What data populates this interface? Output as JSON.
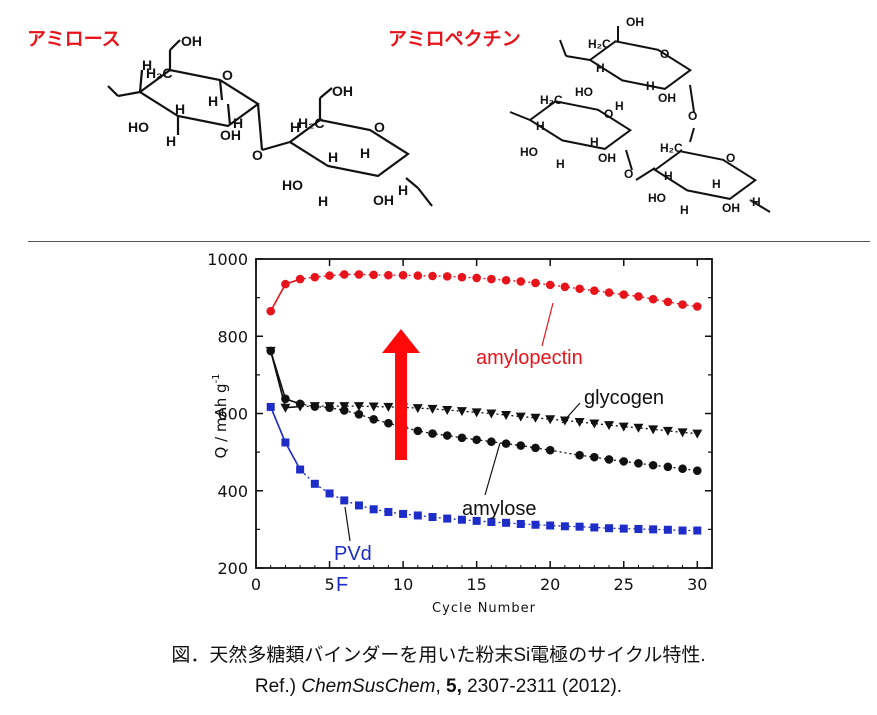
{
  "labels": {
    "amylose_jp": "アミロース",
    "amylopectin_jp": "アミロペクチン"
  },
  "molecules": {
    "atoms": [
      "OH",
      "H",
      "H₂C",
      "HO",
      "O"
    ]
  },
  "caption": {
    "line1": "図．天然多糖類バインダーを用いた粉末Si電極のサイクル特性.",
    "ref_prefix": "Ref.) ",
    "journal": "ChemSusChem",
    "sep1": ", ",
    "volume": "5,",
    "pages": " 2307-2311 (2012)."
  },
  "chart_data": {
    "type": "scatter",
    "xlabel": "Cycle Number",
    "ylabel": "Q / mAh g",
    "ylabel_sup": "-1",
    "xlim": [
      0,
      31
    ],
    "ylim": [
      200,
      1000
    ],
    "xticks": [
      0,
      5,
      10,
      15,
      20,
      25,
      30
    ],
    "yticks": [
      200,
      400,
      600,
      800,
      1000
    ],
    "grid": false,
    "series": [
      {
        "name": "amylopectin",
        "color": "#e8141c",
        "marker": "circle",
        "x": [
          1,
          2,
          3,
          4,
          5,
          6,
          7,
          8,
          9,
          10,
          11,
          12,
          13,
          14,
          15,
          16,
          17,
          18,
          19,
          20,
          21,
          22,
          23,
          24,
          25,
          26,
          27,
          28,
          29,
          30
        ],
        "y": [
          865,
          935,
          948,
          953,
          957,
          960,
          960,
          959,
          958,
          958,
          957,
          956,
          955,
          953,
          951,
          948,
          945,
          942,
          938,
          933,
          928,
          923,
          918,
          913,
          908,
          903,
          896,
          889,
          882,
          877
        ]
      },
      {
        "name": "glycogen",
        "color": "#111111",
        "marker": "triangle-down",
        "x": [
          1,
          2,
          3,
          4,
          5,
          6,
          7,
          8,
          9,
          10,
          11,
          12,
          13,
          14,
          15,
          16,
          17,
          18,
          19,
          20,
          21,
          22,
          23,
          24,
          25,
          26,
          27,
          28,
          29,
          30
        ],
        "y": [
          762,
          615,
          618,
          619,
          619,
          619,
          619,
          618,
          617,
          616,
          614,
          612,
          609,
          606,
          603,
          600,
          596,
          592,
          589,
          585,
          582,
          578,
          574,
          570,
          566,
          563,
          559,
          555,
          551,
          548
        ]
      },
      {
        "name": "amylose",
        "color": "#111111",
        "marker": "circle",
        "x": [
          1,
          2,
          3,
          4,
          5,
          6,
          7,
          8,
          9,
          10,
          11,
          12,
          13,
          14,
          15,
          16,
          17,
          18,
          19,
          20,
          22,
          23,
          24,
          25,
          26,
          27,
          28,
          29,
          30
        ],
        "y": [
          762,
          638,
          625,
          618,
          615,
          608,
          598,
          585,
          575,
          565,
          555,
          548,
          543,
          537,
          532,
          527,
          522,
          517,
          511,
          505,
          492,
          487,
          481,
          476,
          471,
          466,
          462,
          457,
          452
        ]
      },
      {
        "name": "PVdF",
        "color": "#1e2cc8",
        "marker": "square",
        "x": [
          1,
          2,
          3,
          4,
          5,
          6,
          7,
          8,
          9,
          10,
          11,
          12,
          13,
          14,
          15,
          16,
          17,
          18,
          19,
          20,
          21,
          22,
          23,
          24,
          25,
          26,
          27,
          28,
          29,
          30
        ],
        "y": [
          617,
          525,
          455,
          418,
          393,
          375,
          362,
          352,
          345,
          340,
          336,
          332,
          328,
          325,
          322,
          319,
          317,
          314,
          312,
          310,
          308,
          307,
          305,
          303,
          302,
          301,
          300,
          299,
          297,
          297
        ]
      }
    ],
    "annotations": [
      {
        "text": "amylopectin",
        "color": "#e8141c"
      },
      {
        "text": "glycogen",
        "color": "#111111"
      },
      {
        "text": "amylose",
        "color": "#111111"
      },
      {
        "text": "PVd",
        "color": "#1e2cc8"
      },
      {
        "text": "F",
        "color": "#1e2cc8"
      }
    ]
  }
}
